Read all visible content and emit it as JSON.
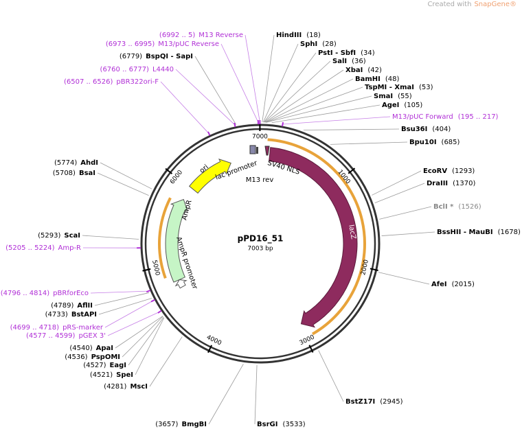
{
  "watermark": {
    "prefix": "Created with",
    "brand": "SnapGene®"
  },
  "map": {
    "name": "pPD16_51",
    "size": "7003 bp",
    "ticks": [
      1000,
      2000,
      3000,
      4000,
      5000,
      6000,
      7000
    ]
  },
  "features": [
    {
      "label": "ori"
    },
    {
      "label": "lac promoter"
    },
    {
      "label": "M13 rev"
    },
    {
      "label": "SV40 NLS"
    },
    {
      "label": "lacZ"
    },
    {
      "label": "AmpR"
    },
    {
      "label": "AmpR promoter"
    }
  ],
  "sites": [
    {
      "name": "HindIII",
      "position": "(18)"
    },
    {
      "name": "SphI",
      "position": "(28)"
    },
    {
      "name": "PstI - SbfI",
      "position": "(34)"
    },
    {
      "name": "SalI",
      "position": "(36)"
    },
    {
      "name": "XbaI",
      "position": "(42)"
    },
    {
      "name": "BamHI",
      "position": "(48)"
    },
    {
      "name": "TspMI - XmaI",
      "position": "(53)"
    },
    {
      "name": "SmaI",
      "position": "(55)"
    },
    {
      "name": "AgeI",
      "position": "(105)"
    },
    {
      "name": "Bsu36I",
      "position": "(404)"
    },
    {
      "name": "Bpu10I",
      "position": "(685)"
    },
    {
      "name": "EcoRV",
      "position": "(1293)"
    },
    {
      "name": "DraIII",
      "position": "(1370)"
    },
    {
      "name": "BclI *",
      "position": "(1526)"
    },
    {
      "name": "BssHII - MauBI",
      "position": "(1678)"
    },
    {
      "name": "AfeI",
      "position": "(2015)"
    },
    {
      "name": "BstZ17I",
      "position": "(2945)"
    },
    {
      "name": "BsrGI",
      "position": "(3533)"
    },
    {
      "name": "BmgBI",
      "position": "(3657)"
    },
    {
      "name": "MscI",
      "position": "(4281)"
    },
    {
      "name": "SpeI",
      "position": "(4521)"
    },
    {
      "name": "EagI",
      "position": "(4527)"
    },
    {
      "name": "PspOMI",
      "position": "(4536)"
    },
    {
      "name": "ApaI",
      "position": "(4540)"
    },
    {
      "name": "BstAPI",
      "position": "(4733)"
    },
    {
      "name": "AflII",
      "position": "(4789)"
    },
    {
      "name": "ScaI",
      "position": "(5293)"
    },
    {
      "name": "BsaI",
      "position": "(5708)"
    },
    {
      "name": "AhdI",
      "position": "(5774)"
    },
    {
      "name": "BspQI - SapI",
      "position": "(6779)"
    }
  ],
  "primers": [
    {
      "name": "M13/pUC Forward",
      "range": "(195 .. 217)"
    },
    {
      "name": "pGEX 3'",
      "range": "(4577 .. 4599)"
    },
    {
      "name": "pRS-marker",
      "range": "(4699 .. 4718)"
    },
    {
      "name": "pBRforEco",
      "range": "(4796 .. 4814)"
    },
    {
      "name": "Amp-R",
      "range": "(5205 .. 5224)"
    },
    {
      "name": "pBR322ori-F",
      "range": "(6507 .. 6526)"
    },
    {
      "name": "L4440",
      "range": "(6760 .. 6777)"
    },
    {
      "name": "M13/pUC Reverse",
      "range": "(6973 .. 6995)"
    },
    {
      "name": "M13 Reverse",
      "range": "(6992 .. 5)"
    }
  ]
}
